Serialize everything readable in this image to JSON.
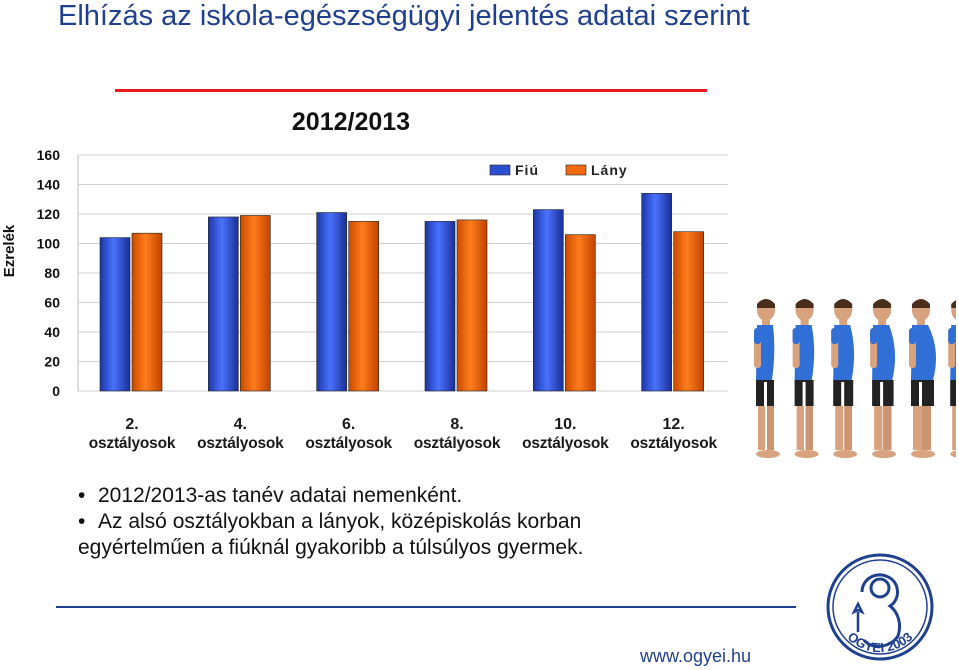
{
  "page": {
    "title": "Elhízás az iskola-egészségügyi jelentés adatai szerint",
    "bullets": [
      "2012/2013-as tanév adatai nemenként.",
      "Az alsó osztályokban a lányok, középiskolás korban",
      "egyértelműen a fiúknál gyakoribb a túlsúlyos gyermek."
    ],
    "bullet_symbol": "•",
    "footer_url": "www.ogyei.hu",
    "logo_text": "OGYEI 2003",
    "colors": {
      "title": "#1f3f8f",
      "accent_line": "#e8191f",
      "logo": "#1f3f8f"
    },
    "illustration": "boy-silhouettes-growing-heavier"
  },
  "chart_data": {
    "type": "bar",
    "title": "2012/2013",
    "ylabel": "Ezrelék",
    "xlabel": "",
    "ylim": [
      0,
      160
    ],
    "yticks": [
      0,
      20,
      40,
      60,
      80,
      100,
      120,
      140,
      160
    ],
    "grid": true,
    "legend_position": "top-right",
    "categories": [
      [
        "2.",
        "osztályosok"
      ],
      [
        "4.",
        "osztályosok"
      ],
      [
        "6.",
        "osztályosok"
      ],
      [
        "8.",
        "osztályosok"
      ],
      [
        "10.",
        "osztályosok"
      ],
      [
        "12.",
        "osztályosok"
      ]
    ],
    "series": [
      {
        "name": "Fiú",
        "color": "#2a4fd0",
        "values": [
          104,
          118,
          121,
          115,
          123,
          134
        ]
      },
      {
        "name": "Lány",
        "color": "#f26a0f",
        "values": [
          107,
          119,
          115,
          116,
          106,
          108
        ]
      }
    ]
  }
}
